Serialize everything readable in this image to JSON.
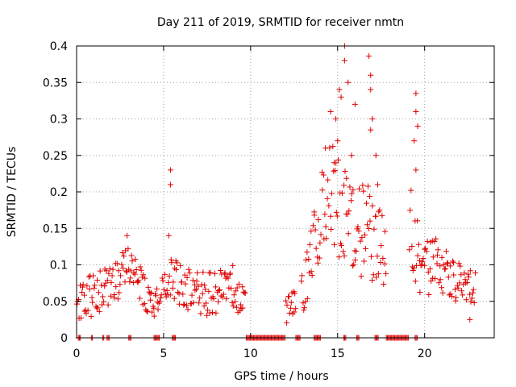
{
  "chart_data": {
    "type": "scatter",
    "title": "Day 211 of 2019, SRMTID for receiver nmtn",
    "xlabel": "GPS time / hours",
    "ylabel": "SRMTID / TECUs",
    "xlim": [
      0,
      24
    ],
    "ylim": [
      0,
      0.4
    ],
    "x_ticks": [
      0,
      5,
      10,
      15,
      20
    ],
    "x_tick_labels": [
      "0",
      "5",
      "10",
      "15",
      "20"
    ],
    "y_ticks": [
      0,
      0.05,
      0.1,
      0.15,
      0.2,
      0.25,
      0.3,
      0.35,
      0.4
    ],
    "y_tick_labels": [
      "0",
      "0.05",
      "0.1",
      "0.15",
      "0.2",
      "0.25",
      "0.3",
      "0.35",
      "0.4"
    ],
    "grid": true,
    "marker": "+",
    "series": [
      {
        "name": "SRMTID",
        "color": "#e00000",
        "profile": [
          {
            "t": 0.0,
            "base": 0.05,
            "spread": 0.025
          },
          {
            "t": 1.0,
            "base": 0.06,
            "spread": 0.03
          },
          {
            "t": 2.0,
            "base": 0.07,
            "spread": 0.03
          },
          {
            "t": 2.8,
            "base": 0.1,
            "spread": 0.03
          },
          {
            "t": 3.4,
            "base": 0.08,
            "spread": 0.03
          },
          {
            "t": 4.0,
            "base": 0.06,
            "spread": 0.025
          },
          {
            "t": 4.4,
            "base": 0.04,
            "spread": 0.02
          },
          {
            "t": 5.0,
            "base": 0.07,
            "spread": 0.03
          },
          {
            "t": 5.4,
            "base": 0.09,
            "spread": 0.035
          },
          {
            "t": 6.0,
            "base": 0.07,
            "spread": 0.03
          },
          {
            "t": 7.5,
            "base": 0.06,
            "spread": 0.03
          },
          {
            "t": 9.0,
            "base": 0.07,
            "spread": 0.03
          },
          {
            "t": 9.6,
            "base": 0.05,
            "spread": 0.025
          },
          {
            "t": 12.1,
            "base": 0.04,
            "spread": 0.02
          },
          {
            "t": 12.5,
            "base": 0.045,
            "spread": 0.02
          },
          {
            "t": 13.2,
            "base": 0.08,
            "spread": 0.04
          },
          {
            "t": 13.8,
            "base": 0.15,
            "spread": 0.05
          },
          {
            "t": 14.4,
            "base": 0.2,
            "spread": 0.07
          },
          {
            "t": 15.2,
            "base": 0.18,
            "spread": 0.08
          },
          {
            "t": 16.0,
            "base": 0.14,
            "spread": 0.06
          },
          {
            "t": 16.8,
            "base": 0.15,
            "spread": 0.07
          },
          {
            "t": 17.5,
            "base": 0.12,
            "spread": 0.05
          },
          {
            "t": 19.2,
            "base": 0.15,
            "spread": 0.06
          },
          {
            "t": 19.8,
            "base": 0.09,
            "spread": 0.04
          },
          {
            "t": 20.5,
            "base": 0.1,
            "spread": 0.04
          },
          {
            "t": 21.5,
            "base": 0.08,
            "spread": 0.03
          },
          {
            "t": 22.6,
            "base": 0.07,
            "spread": 0.025
          }
        ],
        "active_segments": [
          [
            0.0,
            9.7
          ],
          [
            12.0,
            12.6
          ],
          [
            12.9,
            17.8
          ],
          [
            19.1,
            22.9
          ]
        ],
        "peaks": [
          {
            "x": 5.4,
            "y": 0.23
          },
          {
            "x": 5.4,
            "y": 0.21
          },
          {
            "x": 5.3,
            "y": 0.14
          },
          {
            "x": 15.4,
            "y": 0.4
          },
          {
            "x": 15.4,
            "y": 0.38
          },
          {
            "x": 16.8,
            "y": 0.386
          },
          {
            "x": 16.9,
            "y": 0.36
          },
          {
            "x": 16.9,
            "y": 0.34
          },
          {
            "x": 15.1,
            "y": 0.34
          },
          {
            "x": 15.2,
            "y": 0.33
          },
          {
            "x": 15.6,
            "y": 0.35
          },
          {
            "x": 16.0,
            "y": 0.32
          },
          {
            "x": 17.0,
            "y": 0.3
          },
          {
            "x": 16.9,
            "y": 0.285
          },
          {
            "x": 19.5,
            "y": 0.335
          },
          {
            "x": 19.5,
            "y": 0.31
          },
          {
            "x": 19.6,
            "y": 0.29
          },
          {
            "x": 19.4,
            "y": 0.27
          },
          {
            "x": 14.6,
            "y": 0.31
          },
          {
            "x": 14.9,
            "y": 0.3
          },
          {
            "x": 15.0,
            "y": 0.27
          },
          {
            "x": 14.3,
            "y": 0.26
          },
          {
            "x": 15.8,
            "y": 0.25
          },
          {
            "x": 17.2,
            "y": 0.25
          },
          {
            "x": 19.5,
            "y": 0.23
          },
          {
            "x": 17.3,
            "y": 0.21
          },
          {
            "x": 14.8,
            "y": 0.24
          },
          {
            "x": 2.9,
            "y": 0.14
          },
          {
            "x": 22.6,
            "y": 0.025
          }
        ],
        "zero_segments": [
          [
            0.1,
            0.25
          ],
          [
            0.85,
            0.95
          ],
          [
            1.5,
            1.6
          ],
          [
            1.75,
            1.9
          ],
          [
            3.0,
            3.15
          ],
          [
            4.45,
            4.8
          ],
          [
            5.5,
            5.7
          ],
          [
            9.75,
            12.0
          ],
          [
            12.6,
            12.9
          ],
          [
            13.65,
            14.05
          ],
          [
            15.35,
            15.5
          ],
          [
            16.1,
            16.25
          ],
          [
            17.15,
            17.35
          ],
          [
            17.8,
            19.1
          ],
          [
            19.45,
            19.6
          ]
        ]
      }
    ]
  }
}
